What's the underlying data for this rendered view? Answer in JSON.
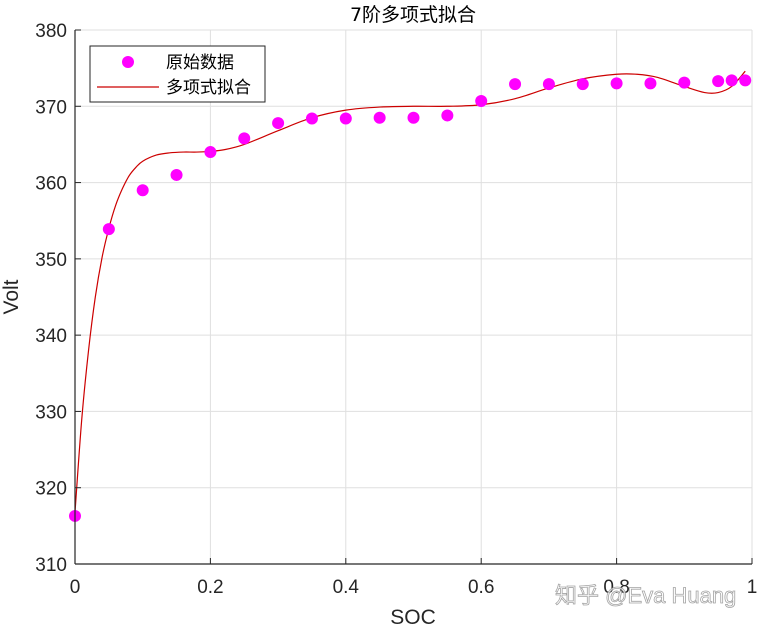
{
  "chart_data": {
    "type": "scatter+line",
    "title": "7阶多项式拟合",
    "xlabel": "SOC",
    "ylabel": "Volt",
    "xlim": [
      0,
      1
    ],
    "ylim": [
      310,
      380
    ],
    "xticks": [
      0,
      0.2,
      0.4,
      0.6,
      0.8,
      1
    ],
    "xtick_labels": [
      "0",
      "0.2",
      "0.4",
      "0.6",
      "0.8",
      "1"
    ],
    "yticks": [
      310,
      320,
      330,
      340,
      350,
      360,
      370,
      380
    ],
    "ytick_labels": [
      "310",
      "320",
      "330",
      "340",
      "350",
      "360",
      "370",
      "380"
    ],
    "grid": true,
    "legend_position": "upper left",
    "legend": [
      "原始数据",
      "多项式拟合"
    ],
    "series": [
      {
        "name": "原始数据",
        "kind": "scatter",
        "color": "#ff00ff",
        "x": [
          0,
          0.05,
          0.1,
          0.15,
          0.2,
          0.25,
          0.3,
          0.35,
          0.4,
          0.45,
          0.5,
          0.55,
          0.6,
          0.65,
          0.7,
          0.75,
          0.8,
          0.85,
          0.9,
          0.95,
          0.97,
          0.99
        ],
        "y": [
          316.3,
          353.9,
          359.0,
          361.0,
          364.0,
          365.8,
          367.8,
          368.4,
          368.4,
          368.5,
          368.5,
          368.8,
          370.7,
          372.9,
          372.9,
          372.9,
          373.0,
          373.0,
          373.1,
          373.3,
          373.4,
          373.4
        ]
      },
      {
        "name": "多项式拟合",
        "kind": "line",
        "color": "#cc0000",
        "x": [
          0,
          0.01,
          0.02,
          0.03,
          0.04,
          0.05,
          0.06,
          0.07,
          0.08,
          0.09,
          0.1,
          0.12,
          0.14,
          0.16,
          0.18,
          0.2,
          0.22,
          0.25,
          0.3,
          0.35,
          0.4,
          0.45,
          0.5,
          0.55,
          0.6,
          0.65,
          0.7,
          0.75,
          0.8,
          0.83,
          0.86,
          0.9,
          0.93,
          0.95,
          0.97,
          0.99
        ],
        "y": [
          316.8,
          329.0,
          338.0,
          345.0,
          350.2,
          354.0,
          357.0,
          359.2,
          360.9,
          362.0,
          362.8,
          363.6,
          363.9,
          364.0,
          364.0,
          364.1,
          364.3,
          365.0,
          366.8,
          368.5,
          369.5,
          369.9,
          370.0,
          370.0,
          370.2,
          371.0,
          372.4,
          373.6,
          374.2,
          374.2,
          373.8,
          372.6,
          371.8,
          371.8,
          372.6,
          374.6
        ]
      }
    ]
  },
  "watermark": "知乎 @Eva Huang"
}
